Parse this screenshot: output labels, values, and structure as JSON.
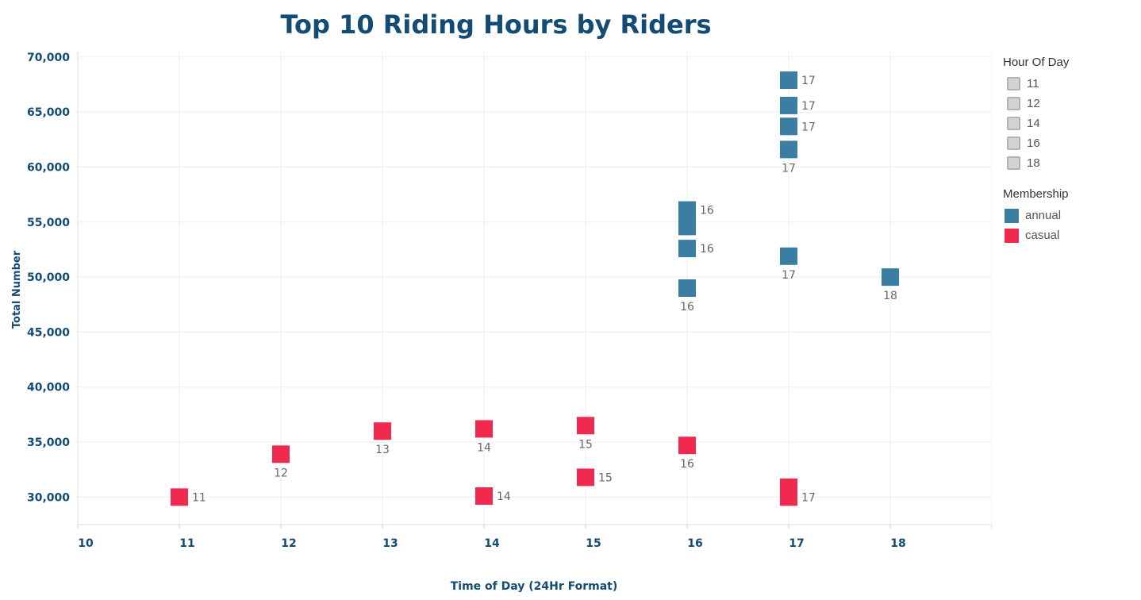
{
  "chart_data": {
    "type": "scatter",
    "title": "Top 10 Riding Hours by Riders",
    "xlabel": "Time of Day (24Hr Format)",
    "ylabel": "Total Number",
    "xlim": [
      10,
      19
    ],
    "ylim": [
      27500,
      70500
    ],
    "x_ticks": [
      10,
      11,
      12,
      13,
      14,
      15,
      16,
      17,
      18,
      19
    ],
    "y_ticks": [
      30000,
      35000,
      40000,
      45000,
      50000,
      55000,
      60000,
      65000,
      70000
    ],
    "y_tick_labels": [
      "30,000",
      "35,000",
      "40,000",
      "45,000",
      "50,000",
      "55,000",
      "60,000",
      "65,000",
      "70,000"
    ],
    "grid": true,
    "series": [
      {
        "name": "annual",
        "color": "#3a7ea3",
        "points": [
          {
            "x": 17,
            "y": 67900,
            "label": "17",
            "label_pos": "right"
          },
          {
            "x": 17,
            "y": 65600,
            "label": "17",
            "label_pos": "right"
          },
          {
            "x": 17,
            "y": 63700,
            "label": "17",
            "label_pos": "right"
          },
          {
            "x": 17,
            "y": 61600,
            "label": "17",
            "label_pos": "below"
          },
          {
            "x": 16,
            "y": 56100,
            "label": "16",
            "label_pos": "right"
          },
          {
            "x": 16,
            "y": 54600,
            "label": "",
            "label_pos": "none"
          },
          {
            "x": 16,
            "y": 52600,
            "label": "16",
            "label_pos": "right"
          },
          {
            "x": 17,
            "y": 51900,
            "label": "17",
            "label_pos": "below"
          },
          {
            "x": 16,
            "y": 49000,
            "label": "16",
            "label_pos": "below"
          },
          {
            "x": 18,
            "y": 50000,
            "label": "18",
            "label_pos": "below"
          }
        ]
      },
      {
        "name": "casual",
        "color": "#f2294f",
        "points": [
          {
            "x": 11,
            "y": 30000,
            "label": "11",
            "label_pos": "right"
          },
          {
            "x": 12,
            "y": 33900,
            "label": "12",
            "label_pos": "below"
          },
          {
            "x": 13,
            "y": 36000,
            "label": "13",
            "label_pos": "below"
          },
          {
            "x": 14,
            "y": 36200,
            "label": "14",
            "label_pos": "below"
          },
          {
            "x": 14,
            "y": 30100,
            "label": "14",
            "label_pos": "right"
          },
          {
            "x": 15,
            "y": 36500,
            "label": "15",
            "label_pos": "below"
          },
          {
            "x": 15,
            "y": 31800,
            "label": "15",
            "label_pos": "right"
          },
          {
            "x": 16,
            "y": 34700,
            "label": "16",
            "label_pos": "below"
          },
          {
            "x": 17,
            "y": 30900,
            "label": "",
            "label_pos": "none"
          },
          {
            "x": 17,
            "y": 30000,
            "label": "17",
            "label_pos": "right"
          }
        ]
      }
    ]
  },
  "legend": {
    "hour_title": "Hour Of Day",
    "hours": [
      "11",
      "12",
      "14",
      "16",
      "18"
    ],
    "membership_title": "Membership",
    "memberships": [
      {
        "label": "annual",
        "color": "#3a7ea3"
      },
      {
        "label": "casual",
        "color": "#f2294f"
      }
    ]
  },
  "colors": {
    "axis_text": "#124b73",
    "mark_label": "#666666",
    "grid": "#ececec"
  }
}
